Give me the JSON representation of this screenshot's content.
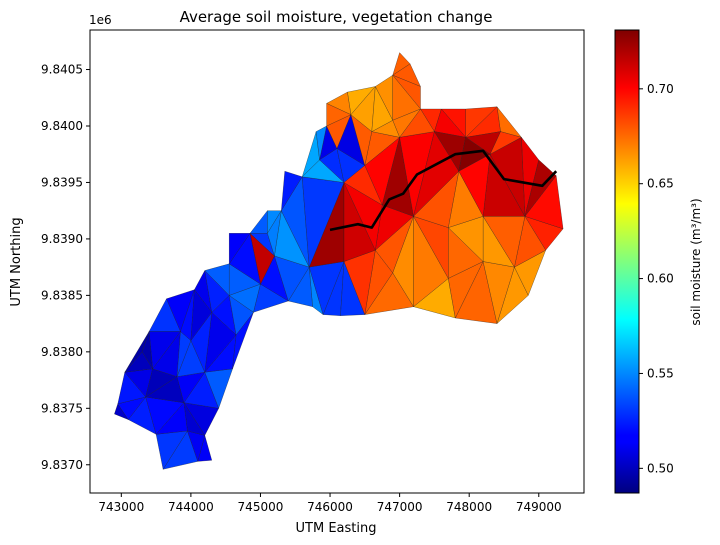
{
  "chart_data": {
    "type": "heatmap",
    "subtype": "triangulated-mesh",
    "title": "Average soil moisture, vegetation change",
    "xlabel": "UTM Easting",
    "ylabel": "UTM Northing",
    "y_offset_label": "1e6",
    "xlim": [
      742550,
      749650
    ],
    "ylim": [
      9836750,
      9840850
    ],
    "xticks": [
      743000,
      744000,
      745000,
      746000,
      747000,
      748000,
      749000
    ],
    "xtick_labels": [
      "743000",
      "744000",
      "745000",
      "746000",
      "747000",
      "748000",
      "749000"
    ],
    "yticks": [
      9837000,
      9837500,
      9838000,
      9838500,
      9839000,
      9839500,
      9840000,
      9840500
    ],
    "ytick_labels": [
      "9.8370",
      "9.8375",
      "9.8380",
      "9.8385",
      "9.8390",
      "9.8395",
      "9.8400",
      "9.8405"
    ],
    "colorbar": {
      "label": "soil moisture (m³/m³)",
      "colormap": "jet",
      "range": [
        0.487,
        0.731
      ],
      "ticks": [
        0.5,
        0.55,
        0.6,
        0.65,
        0.7
      ],
      "tick_labels": [
        "0.50",
        "0.55",
        "0.60",
        "0.65",
        "0.70"
      ]
    },
    "stream_line": [
      [
        746000,
        9839080
      ],
      [
        746400,
        9839130
      ],
      [
        746600,
        9839100
      ],
      [
        746850,
        9839350
      ],
      [
        747050,
        9839400
      ],
      [
        747250,
        9839570
      ],
      [
        747800,
        9839750
      ],
      [
        748200,
        9839780
      ],
      [
        748500,
        9839530
      ],
      [
        749050,
        9839470
      ],
      [
        749250,
        9839600
      ]
    ],
    "mesh_points": [
      [
        743600,
        9836960
      ],
      [
        744100,
        9837030
      ],
      [
        744300,
        9837040
      ],
      [
        744200,
        9837260
      ],
      [
        743500,
        9837270
      ],
      [
        743100,
        9837400
      ],
      [
        742900,
        9837450
      ],
      [
        742950,
        9837540
      ],
      [
        743350,
        9837600
      ],
      [
        743900,
        9837550
      ],
      [
        744400,
        9837500
      ],
      [
        743050,
        9837820
      ],
      [
        743450,
        9837850
      ],
      [
        743800,
        9837780
      ],
      [
        744200,
        9837820
      ],
      [
        744600,
        9837850
      ],
      [
        743400,
        9838180
      ],
      [
        743850,
        9838180
      ],
      [
        744300,
        9838350
      ],
      [
        744650,
        9838150
      ],
      [
        744900,
        9838350
      ],
      [
        743650,
        9838470
      ],
      [
        744050,
        9838550
      ],
      [
        744550,
        9838500
      ],
      [
        745000,
        9838600
      ],
      [
        745400,
        9838450
      ],
      [
        745750,
        9838400
      ],
      [
        745900,
        9838330
      ],
      [
        746150,
        9838320
      ],
      [
        746500,
        9838330
      ],
      [
        747200,
        9838400
      ],
      [
        747800,
        9838300
      ],
      [
        748400,
        9838250
      ],
      [
        748850,
        9838500
      ],
      [
        749100,
        9838900
      ],
      [
        749350,
        9839090
      ],
      [
        748650,
        9838750
      ],
      [
        748200,
        9838800
      ],
      [
        747700,
        9838650
      ],
      [
        746900,
        9838700
      ],
      [
        746650,
        9838900
      ],
      [
        746200,
        9838800
      ],
      [
        745700,
        9838750
      ],
      [
        745200,
        9838850
      ],
      [
        744550,
        9838780
      ],
      [
        744200,
        9838870
      ],
      [
        744200,
        9838720
      ],
      [
        744550,
        9839050
      ],
      [
        744850,
        9839050
      ],
      [
        745100,
        9839250
      ],
      [
        745600,
        9839550
      ],
      [
        745850,
        9839700
      ],
      [
        746100,
        9839800
      ],
      [
        746500,
        9839650
      ],
      [
        746750,
        9839300
      ],
      [
        747200,
        9839200
      ],
      [
        747700,
        9839100
      ],
      [
        748200,
        9839200
      ],
      [
        748800,
        9839200
      ],
      [
        745300,
        9839250
      ],
      [
        745350,
        9839600
      ],
      [
        745800,
        9839950
      ],
      [
        745950,
        9840000
      ],
      [
        746250,
        9840300
      ],
      [
        746650,
        9840350
      ],
      [
        746900,
        9840450
      ],
      [
        747000,
        9840650
      ],
      [
        747150,
        9840550
      ],
      [
        747300,
        9840350
      ],
      [
        747300,
        9840150
      ],
      [
        747600,
        9840150
      ],
      [
        747950,
        9840150
      ],
      [
        748400,
        9840170
      ],
      [
        748750,
        9839900
      ],
      [
        749000,
        9839700
      ],
      [
        749250,
        9839560
      ],
      [
        748450,
        9839950
      ],
      [
        747950,
        9839900
      ],
      [
        747500,
        9839950
      ],
      [
        747000,
        9839900
      ],
      [
        746600,
        9839950
      ],
      [
        746300,
        9840100
      ],
      [
        745950,
        9840200
      ],
      [
        746200,
        9839500
      ],
      [
        746900,
        9840050
      ],
      [
        747850,
        9839600
      ],
      [
        748300,
        9839750
      ],
      [
        745100,
        9839050
      ],
      [
        743950,
        9837300
      ],
      [
        743300,
        9838000
      ],
      [
        744000,
        9838100
      ]
    ]
  }
}
